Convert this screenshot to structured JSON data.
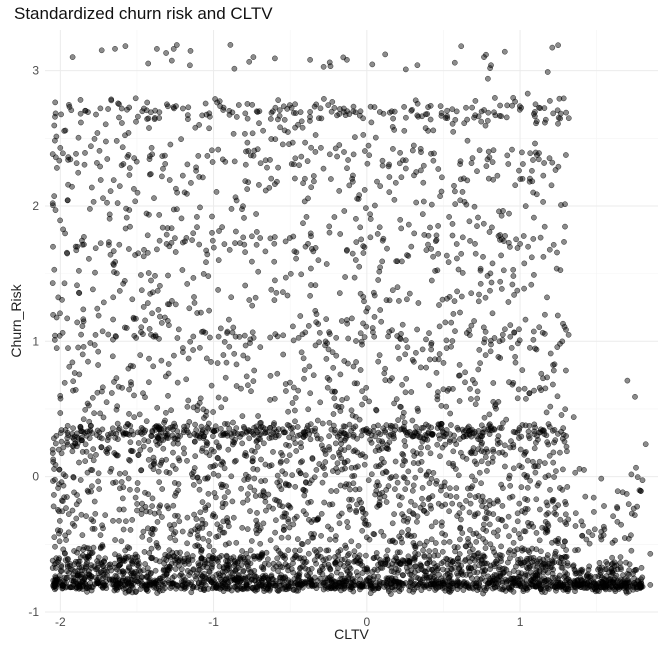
{
  "chart_data": {
    "type": "scatter",
    "title": "Standardized churn risk and CLTV",
    "xlabel": "CLTV",
    "ylabel": "Churn_Risk",
    "xlim": [
      -2.1,
      1.9
    ],
    "ylim": [
      -1.0,
      3.3
    ],
    "x_ticks": [
      -2,
      -1,
      0,
      1
    ],
    "x_tick_labels": [
      "-2",
      "-1",
      "0",
      "1"
    ],
    "y_ticks": [
      -1,
      0,
      1,
      2,
      3
    ],
    "y_tick_labels": [
      "-1",
      "0",
      "1",
      "2",
      "3"
    ],
    "grid": true,
    "legend": "none",
    "point_color": "#000000",
    "point_opacity": 0.45,
    "sample_points": [
      [
        -1.92,
        3.1
      ],
      [
        -1.73,
        3.15
      ],
      [
        -1.37,
        3.16
      ],
      [
        -1.31,
        3.13
      ],
      [
        -0.89,
        3.19
      ],
      [
        -0.74,
        3.1
      ],
      [
        -0.6,
        3.09
      ],
      [
        -0.37,
        3.08
      ],
      [
        -0.13,
        3.08
      ],
      [
        0.12,
        3.12
      ],
      [
        0.33,
        3.04
      ],
      [
        0.81,
        3.04
      ],
      [
        0.9,
        3.14
      ],
      [
        1.21,
        3.17
      ],
      [
        1.18,
        2.99
      ],
      [
        0.79,
        2.94
      ],
      [
        -1.2,
        2.72
      ],
      [
        -0.99,
        2.79
      ],
      [
        0.05,
        2.73
      ],
      [
        0.4,
        2.73
      ],
      [
        1.05,
        2.83
      ],
      [
        1.3,
        2.69
      ],
      [
        -1.6,
        2.3
      ],
      [
        -1.1,
        2.37
      ],
      [
        -0.3,
        2.43
      ],
      [
        0.3,
        2.41
      ],
      [
        0.8,
        2.36
      ],
      [
        1.25,
        2.29
      ],
      [
        -2.05,
        2.02
      ],
      [
        -1.55,
        1.97
      ],
      [
        -0.85,
        2.04
      ],
      [
        -0.05,
        2.08
      ],
      [
        0.65,
        2.01
      ],
      [
        1.15,
        2.03
      ],
      [
        -1.9,
        1.7
      ],
      [
        -1.2,
        1.73
      ],
      [
        -0.4,
        1.7
      ],
      [
        0.45,
        1.74
      ],
      [
        1.0,
        1.72
      ],
      [
        -2.05,
        1.43
      ],
      [
        -1.35,
        1.41
      ],
      [
        -0.6,
        1.45
      ],
      [
        0.2,
        1.4
      ],
      [
        0.95,
        1.42
      ],
      [
        -1.75,
        1.19
      ],
      [
        -0.9,
        1.16
      ],
      [
        0.05,
        1.18
      ],
      [
        0.7,
        1.15
      ],
      [
        1.28,
        1.13
      ],
      [
        -1.95,
        0.95
      ],
      [
        -1.2,
        0.92
      ],
      [
        -0.25,
        0.94
      ],
      [
        0.55,
        0.96
      ],
      [
        1.2,
        0.91
      ],
      [
        -1.65,
        0.7
      ],
      [
        -0.85,
        0.67
      ],
      [
        0.15,
        0.71
      ],
      [
        0.95,
        0.68
      ],
      [
        1.7,
        0.71
      ],
      [
        1.75,
        0.59
      ],
      [
        -2.0,
        0.47
      ],
      [
        -1.05,
        0.45
      ],
      [
        -0.1,
        0.49
      ],
      [
        0.8,
        0.46
      ],
      [
        1.35,
        0.44
      ],
      [
        -2.05,
        0.2
      ],
      [
        -1.4,
        0.33
      ],
      [
        -0.7,
        0.31
      ],
      [
        0.0,
        0.33
      ],
      [
        0.7,
        0.32
      ],
      [
        1.3,
        0.3
      ],
      [
        1.82,
        0.24
      ],
      [
        -1.8,
        0.05
      ],
      [
        -1.0,
        0.02
      ],
      [
        -0.2,
        0.06
      ],
      [
        0.6,
        0.01
      ],
      [
        1.1,
        0.03
      ],
      [
        -1.5,
        -0.25
      ],
      [
        -0.55,
        -0.22
      ],
      [
        0.3,
        -0.27
      ],
      [
        1.05,
        -0.24
      ],
      [
        1.4,
        -0.33
      ],
      [
        -2.0,
        -0.4
      ],
      [
        -1.25,
        -0.47
      ],
      [
        -0.35,
        -0.45
      ],
      [
        0.45,
        -0.49
      ],
      [
        1.25,
        -0.46
      ],
      [
        1.6,
        -0.7
      ],
      [
        -2.05,
        -0.62
      ],
      [
        -1.1,
        -0.64
      ],
      [
        -0.15,
        -0.66
      ],
      [
        0.75,
        -0.62
      ],
      [
        1.45,
        -0.74
      ],
      [
        1.85,
        -0.57
      ],
      [
        -2.0,
        -0.8
      ],
      [
        -1.0,
        -0.79
      ],
      [
        0.0,
        -0.81
      ],
      [
        1.0,
        -0.8
      ],
      [
        1.5,
        -0.81
      ],
      [
        1.85,
        -0.8
      ]
    ]
  }
}
